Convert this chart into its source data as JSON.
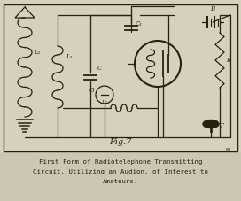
{
  "bg_color": "#d6d0be",
  "border_color": "#2a2010",
  "line_color": "#2a2010",
  "caption_bg": "#ccc7b2",
  "fig_label": "Fig.7",
  "caption_line1": "First Form of Radiotelephone Transmitting",
  "caption_line2": "Circuit, Utilizing an Audion, of Interest to",
  "caption_line3": "Amateurs.",
  "lw": 0.9
}
